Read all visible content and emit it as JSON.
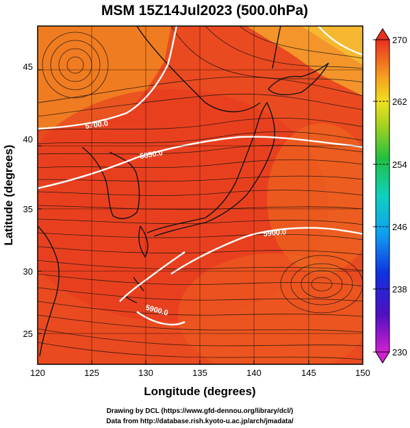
{
  "title": "MSM 15Z14Jul2023 (500.0hPa)",
  "xlabel": "Longitude (degrees)",
  "ylabel": "Latitude  (degrees)",
  "x_ticks": [
    "120",
    "125",
    "130",
    "135",
    "140",
    "145",
    "150"
  ],
  "y_ticks": [
    "25",
    "30",
    "35",
    "40",
    "45"
  ],
  "colorbar_ticks": [
    "270",
    "262",
    "254",
    "246",
    "238",
    "230"
  ],
  "contour_labels": [
    "5700.0",
    "5850.0",
    "5900.0",
    "5900.0"
  ],
  "footer_line1": "Drawing by DCL (https://www.gfd-dennou.org/library/dcl/)",
  "footer_line2": "Data from http://database.rish.kyoto-u.ac.jp/arch/jmadata/",
  "colors": {
    "field_warm": "#e83a1e",
    "field_cool": "#f5a21e",
    "contour": "#ffffff",
    "coast": "#111111"
  },
  "map_extent": {
    "lon_range": [
      120,
      150
    ],
    "lat_range": [
      22.4,
      47.6
    ]
  },
  "colorbar_range": [
    230,
    270
  ]
}
